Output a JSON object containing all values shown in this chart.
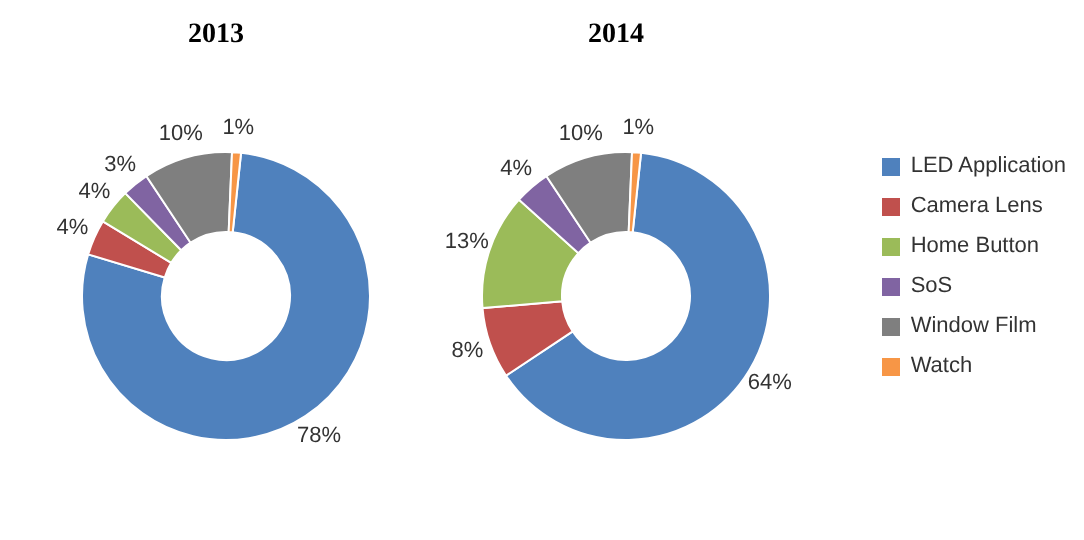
{
  "chart_data": {
    "type": "donut",
    "categories": [
      "LED Application",
      "Camera Lens",
      "Home Button",
      "SoS",
      "Window Film",
      "Watch"
    ],
    "colors": [
      "#4f81bd",
      "#c0504d",
      "#9bbb59",
      "#8064a2",
      "#7f7f7f",
      "#f79646"
    ],
    "legend": "right",
    "series": [
      {
        "name": "2013",
        "values": [
          78,
          4,
          4,
          3,
          10,
          1
        ],
        "value_labels": [
          "78%",
          "4%",
          "4%",
          "3%",
          "10%",
          "1%"
        ]
      },
      {
        "name": "2014",
        "values": [
          64,
          8,
          13,
          4,
          10,
          1
        ],
        "value_labels": [
          "64%",
          "8%",
          "13%",
          "4%",
          "10%",
          "1%"
        ]
      }
    ]
  }
}
